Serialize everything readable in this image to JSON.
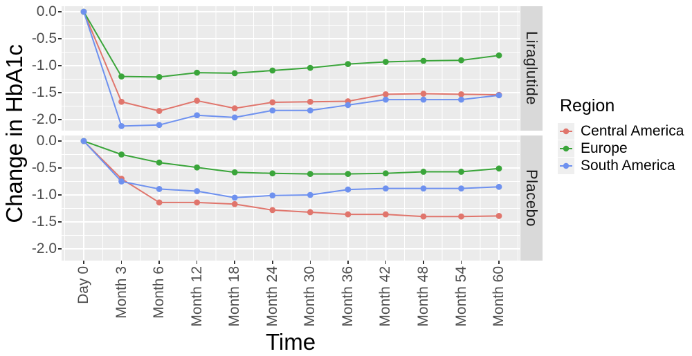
{
  "chart_data": {
    "type": "line",
    "title": "",
    "xlabel": "Time",
    "ylabel": "Change in HbA1c",
    "x_categories": [
      "Day 0",
      "Month 3",
      "Month 6",
      "Month 12",
      "Month 18",
      "Month 24",
      "Month 30",
      "Month 36",
      "Month 42",
      "Month 48",
      "Month 54",
      "Month 60"
    ],
    "y_tick_labels": [
      "0.0",
      "-0.5",
      "-1.0",
      "-1.5",
      "-2.0"
    ],
    "y_tick_values": [
      0,
      -0.5,
      -1.0,
      -1.5,
      -2.0
    ],
    "y_minor_values": [
      -0.25,
      -0.75,
      -1.25,
      -1.75,
      -2.25
    ],
    "ylim": [
      0.1,
      -2.25
    ],
    "grid": true,
    "legend": {
      "title": "Region",
      "position": "right",
      "entries": [
        "Central America",
        "Europe",
        "South America"
      ]
    },
    "facets": [
      {
        "label": "Liraglutide",
        "series": [
          {
            "name": "Central America",
            "color": "#E0756C",
            "values": [
              0,
              -1.67,
              -1.84,
              -1.65,
              -1.79,
              -1.68,
              -1.67,
              -1.66,
              -1.53,
              -1.52,
              -1.53,
              -1.54
            ]
          },
          {
            "name": "Europe",
            "color": "#3AA53A",
            "values": [
              0,
              -1.2,
              -1.21,
              -1.13,
              -1.14,
              -1.09,
              -1.04,
              -0.97,
              -0.93,
              -0.91,
              -0.9,
              -0.81
            ]
          },
          {
            "name": "South America",
            "color": "#6E91EF",
            "values": [
              0,
              -2.12,
              -2.1,
              -1.92,
              -1.96,
              -1.83,
              -1.83,
              -1.73,
              -1.63,
              -1.63,
              -1.63,
              -1.55
            ]
          }
        ]
      },
      {
        "label": "Placebo",
        "series": [
          {
            "name": "Central America",
            "color": "#E0756C",
            "values": [
              0,
              -0.7,
              -1.14,
              -1.14,
              -1.17,
              -1.28,
              -1.32,
              -1.36,
              -1.36,
              -1.4,
              -1.4,
              -1.39
            ]
          },
          {
            "name": "Europe",
            "color": "#3AA53A",
            "values": [
              0,
              -0.25,
              -0.4,
              -0.49,
              -0.58,
              -0.6,
              -0.61,
              -0.61,
              -0.6,
              -0.57,
              -0.57,
              -0.51
            ]
          },
          {
            "name": "South America",
            "color": "#6E91EF",
            "values": [
              0,
              -0.75,
              -0.89,
              -0.93,
              -1.05,
              -1.01,
              -1.0,
              -0.9,
              -0.88,
              -0.88,
              -0.88,
              -0.85
            ]
          }
        ]
      }
    ],
    "colors": {
      "panel_bg": "#EBEBEB",
      "grid": "#FFFFFF",
      "strip_bg": "#D9D9D9",
      "legend_key_bg": "#EFEFEF",
      "axis_text": "#4D4D4D",
      "tick_mark": "#333333",
      "central_america": "#E0756C",
      "europe": "#3AA53A",
      "south_america": "#6E91EF"
    }
  }
}
